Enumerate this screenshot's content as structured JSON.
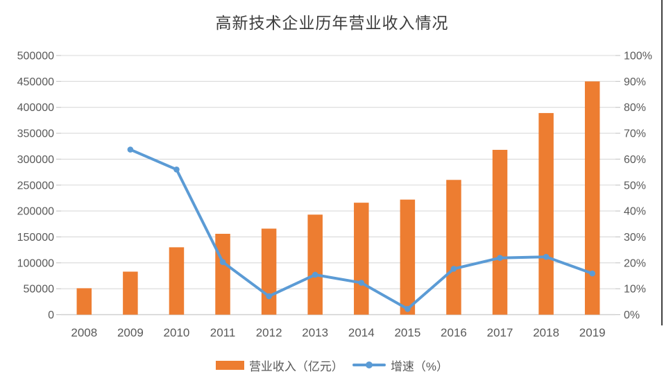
{
  "title": "高新技术企业历年营业收入情况",
  "legend": {
    "revenue_label": "营业收入（亿元）",
    "growth_label": "增速（%）"
  },
  "colors": {
    "bar": "#ED7D31",
    "line": "#5B9BD5",
    "gridline": "#D9D9D9",
    "axis_line": "#D0D0D0",
    "tick": "#C9C9C9",
    "axis_text": "#595959",
    "title_text": "#3d3d3d"
  },
  "chart_data": {
    "type": "bar",
    "subtype": "combo bar + line, dual axis",
    "title": "高新技术企业历年营业收入情况",
    "categories": [
      "2008",
      "2009",
      "2010",
      "2011",
      "2012",
      "2013",
      "2014",
      "2015",
      "2016",
      "2017",
      "2018",
      "2019"
    ],
    "series": [
      {
        "name": "营业收入（亿元）",
        "type": "bar",
        "axis": "left",
        "values": [
          51000,
          83000,
          130000,
          156000,
          166000,
          193000,
          216000,
          222000,
          260000,
          318000,
          389000,
          450000
        ]
      },
      {
        "name": "增速（%）",
        "type": "line",
        "axis": "right",
        "values": [
          null,
          63.7,
          56.0,
          20.3,
          7.1,
          15.4,
          12.3,
          2.2,
          17.7,
          21.9,
          22.3,
          15.9
        ]
      }
    ],
    "left_axis": {
      "min": 0,
      "max": 500000,
      "step": 50000,
      "ticks": [
        "0",
        "50000",
        "100000",
        "150000",
        "200000",
        "250000",
        "300000",
        "350000",
        "400000",
        "450000",
        "500000"
      ]
    },
    "right_axis": {
      "min": 0,
      "max": 100,
      "step": 10,
      "ticks": [
        "0%",
        "10%",
        "20%",
        "30%",
        "40%",
        "50%",
        "60%",
        "70%",
        "80%",
        "90%",
        "100%"
      ]
    },
    "grid": true,
    "legend_position": "bottom",
    "xlabel": "",
    "ylabel": ""
  }
}
